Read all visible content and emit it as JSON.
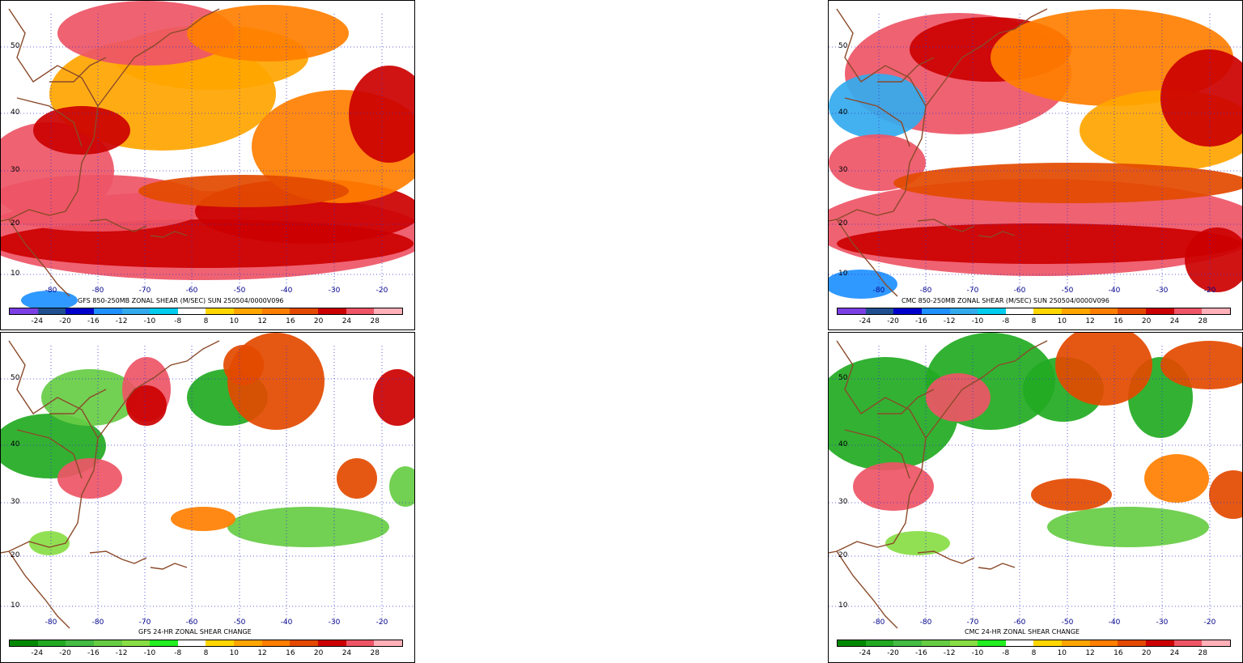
{
  "panels": [
    {
      "id": "gfs-shear",
      "title": "GFS 850-250MB ZONAL SHEAR (M/SEC) SUN 250504/0000V096",
      "style": "shear"
    },
    {
      "id": "cmc-shear",
      "title": "CMC 850-250MB ZONAL SHEAR (M/SEC) SUN 250504/0000V096",
      "style": "shear"
    },
    {
      "id": "gfs-change",
      "title": "GFS 24-HR ZONAL SHEAR CHANGE",
      "style": "change"
    },
    {
      "id": "cmc-change",
      "title": "CMC 24-HR ZONAL SHEAR CHANGE",
      "style": "change"
    }
  ],
  "lat_labels": [
    "50",
    "40",
    "30",
    "20",
    "10"
  ],
  "lon_labels": [
    "-80",
    "-80",
    "-70",
    "-60",
    "-50",
    "-40",
    "-30",
    "-20"
  ],
  "colorbar_labels": [
    "-24",
    "-20",
    "-16",
    "-12",
    "-10",
    "-8",
    "8",
    "10",
    "12",
    "16",
    "20",
    "24",
    "28"
  ],
  "colors": {
    "shear_scale": [
      "#7b3fe4",
      "#1f4f8f",
      "#0000cd",
      "#1e90ff",
      "#33aaee",
      "#00ccee",
      "#ffffff",
      "#ffd700",
      "#ffa500",
      "#ff7f00",
      "#e34a00",
      "#cc0000",
      "#ee5566",
      "#ffb0b8"
    ],
    "change_scale": [
      "#008800",
      "#22aa22",
      "#44bb44",
      "#66cc44",
      "#88dd44",
      "#22ee22",
      "#ffffff",
      "#ffd700",
      "#ffa500",
      "#ff7f00",
      "#e34a00",
      "#cc0000",
      "#ee5566",
      "#ffb0b8"
    ],
    "grid": "#3333cc",
    "coast": "#8b4a2a"
  }
}
